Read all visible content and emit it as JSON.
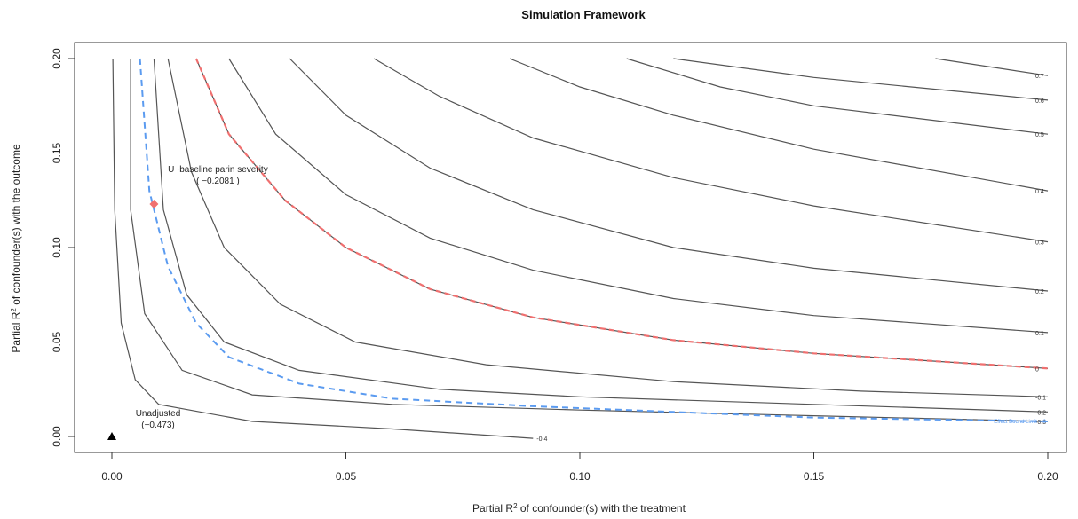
{
  "chart_data": {
    "type": "contour",
    "title": "Simulation Framework",
    "xlabel": {
      "prefix": "Partial R",
      "sup": "2",
      "suffix": " of confounder(s) with the treatment"
    },
    "ylabel": {
      "prefix": "Partial R",
      "sup": "2",
      "suffix": " of confounder(s) with the outcome"
    },
    "xlim": [
      0,
      0.2
    ],
    "ylim": [
      0,
      0.2
    ],
    "x_ticks": [
      0.0,
      0.05,
      0.1,
      0.15,
      0.2
    ],
    "x_tick_labels": [
      "0.00",
      "0.05",
      "0.10",
      "0.15",
      "0.20"
    ],
    "y_ticks": [
      0.0,
      0.05,
      0.1,
      0.15,
      0.2
    ],
    "y_tick_labels": [
      "0.00",
      "0.05",
      "0.10",
      "0.15",
      "0.20"
    ],
    "colors": {
      "contour": "#555555",
      "threshold": "#f07070",
      "bound": "#5b9bf0"
    },
    "contours": [
      {
        "label": "-0.4",
        "style": "black",
        "points": [
          [
            0.0002,
            0.2
          ],
          [
            0.0006,
            0.12
          ],
          [
            0.002,
            0.06
          ],
          [
            0.005,
            0.03
          ],
          [
            0.01,
            0.017
          ],
          [
            0.03,
            0.008
          ],
          [
            0.06,
            0.004
          ],
          [
            0.09,
            -0.001
          ]
        ]
      },
      {
        "label": "-0.3",
        "style": "black",
        "points": [
          [
            0.004,
            0.2
          ],
          [
            0.004,
            0.12
          ],
          [
            0.007,
            0.065
          ],
          [
            0.015,
            0.035
          ],
          [
            0.03,
            0.022
          ],
          [
            0.06,
            0.017
          ],
          [
            0.1,
            0.014
          ],
          [
            0.15,
            0.011
          ],
          [
            0.2,
            0.008
          ]
        ]
      },
      {
        "label": "-0.2",
        "style": "black",
        "points": [
          [
            0.009,
            0.2
          ],
          [
            0.011,
            0.12
          ],
          [
            0.016,
            0.075
          ],
          [
            0.024,
            0.05
          ],
          [
            0.04,
            0.035
          ],
          [
            0.07,
            0.025
          ],
          [
            0.1,
            0.021
          ],
          [
            0.15,
            0.017
          ],
          [
            0.2,
            0.013
          ]
        ]
      },
      {
        "label": "-0.1",
        "style": "black",
        "points": [
          [
            0.012,
            0.2
          ],
          [
            0.017,
            0.14
          ],
          [
            0.024,
            0.1
          ],
          [
            0.036,
            0.07
          ],
          [
            0.052,
            0.05
          ],
          [
            0.08,
            0.038
          ],
          [
            0.12,
            0.029
          ],
          [
            0.16,
            0.024
          ],
          [
            0.2,
            0.021
          ]
        ]
      },
      {
        "label": "0",
        "style": "red",
        "points": [
          [
            0.018,
            0.2
          ],
          [
            0.025,
            0.16
          ],
          [
            0.037,
            0.125
          ],
          [
            0.05,
            0.1
          ],
          [
            0.068,
            0.078
          ],
          [
            0.09,
            0.063
          ],
          [
            0.12,
            0.051
          ],
          [
            0.15,
            0.044
          ],
          [
            0.2,
            0.036
          ]
        ]
      },
      {
        "label": "0.1",
        "style": "black",
        "points": [
          [
            0.025,
            0.2
          ],
          [
            0.035,
            0.16
          ],
          [
            0.05,
            0.128
          ],
          [
            0.068,
            0.105
          ],
          [
            0.09,
            0.088
          ],
          [
            0.12,
            0.073
          ],
          [
            0.15,
            0.064
          ],
          [
            0.2,
            0.055
          ]
        ]
      },
      {
        "label": "0.2",
        "style": "black",
        "points": [
          [
            0.038,
            0.2
          ],
          [
            0.05,
            0.17
          ],
          [
            0.068,
            0.142
          ],
          [
            0.09,
            0.12
          ],
          [
            0.12,
            0.1
          ],
          [
            0.15,
            0.089
          ],
          [
            0.2,
            0.077
          ]
        ]
      },
      {
        "label": "0.3",
        "style": "black",
        "points": [
          [
            0.056,
            0.2
          ],
          [
            0.07,
            0.18
          ],
          [
            0.09,
            0.158
          ],
          [
            0.12,
            0.137
          ],
          [
            0.15,
            0.122
          ],
          [
            0.2,
            0.103
          ]
        ]
      },
      {
        "label": "0.4",
        "style": "black",
        "points": [
          [
            0.085,
            0.2
          ],
          [
            0.1,
            0.185
          ],
          [
            0.12,
            0.17
          ],
          [
            0.15,
            0.152
          ],
          [
            0.2,
            0.13
          ]
        ]
      },
      {
        "label": "0.5",
        "style": "black",
        "points": [
          [
            0.11,
            0.2
          ],
          [
            0.13,
            0.185
          ],
          [
            0.15,
            0.175
          ],
          [
            0.2,
            0.16
          ]
        ]
      },
      {
        "label": "0.6",
        "style": "black",
        "points": [
          [
            0.12,
            0.2
          ],
          [
            0.15,
            0.19
          ],
          [
            0.2,
            0.178
          ]
        ]
      },
      {
        "label": "0.7",
        "style": "black",
        "points": [
          [
            0.176,
            0.2
          ],
          [
            0.2,
            0.191
          ]
        ]
      }
    ],
    "bound_curve": {
      "label": "Effect Bound Limit = 0",
      "points": [
        [
          0.006,
          0.2
        ],
        [
          0.008,
          0.13
        ],
        [
          0.012,
          0.09
        ],
        [
          0.018,
          0.06
        ],
        [
          0.025,
          0.042
        ],
        [
          0.04,
          0.028
        ],
        [
          0.06,
          0.02
        ],
        [
          0.09,
          0.016
        ],
        [
          0.12,
          0.013
        ],
        [
          0.15,
          0.01
        ],
        [
          0.2,
          0.008
        ]
      ]
    },
    "points": [
      {
        "name": "unadjusted",
        "x": 0.0,
        "y": 0.0,
        "marker": "triangle",
        "color": "#000000",
        "label": "Unadjusted",
        "value": "(−0.473)"
      },
      {
        "name": "baseline",
        "x": 0.009,
        "y": 0.123,
        "marker": "diamond",
        "color": "#f07070",
        "label": "U~baseline parin severity",
        "value": "( −0.2081 )"
      }
    ]
  }
}
